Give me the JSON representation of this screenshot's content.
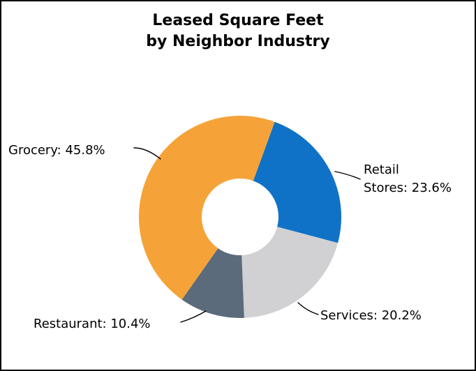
{
  "frame": {
    "background": "#FFFFFF",
    "border_color": "#000000"
  },
  "title": {
    "line1": "Leased Square Feet",
    "line2": "by Neighbor Industry"
  },
  "chart_data": {
    "type": "pie",
    "variant": "donut",
    "title": "Leased Square Feet by Neighbor Industry",
    "unit": "%",
    "slices": [
      {
        "label": "Retail Stores",
        "value": 23.6,
        "color": "#1072C6"
      },
      {
        "label": "Services",
        "value": 20.2,
        "color": "#D1D1D3"
      },
      {
        "label": "Restaurant",
        "value": 10.4,
        "color": "#5B6B7C"
      },
      {
        "label": "Grocery",
        "value": 45.8,
        "color": "#F5A338"
      }
    ],
    "start_angle_deg": 20,
    "clockwise": true,
    "donut_hole_ratio": 0.38,
    "legend_position": "none",
    "callout_labels": true
  },
  "callouts": {
    "grocery": "Grocery: 45.8%",
    "retail_line1": "Retail",
    "retail_line2": "Stores: 23.6%",
    "services": "Services: 20.2%",
    "restaurant": "Restaurant: 10.4%"
  }
}
